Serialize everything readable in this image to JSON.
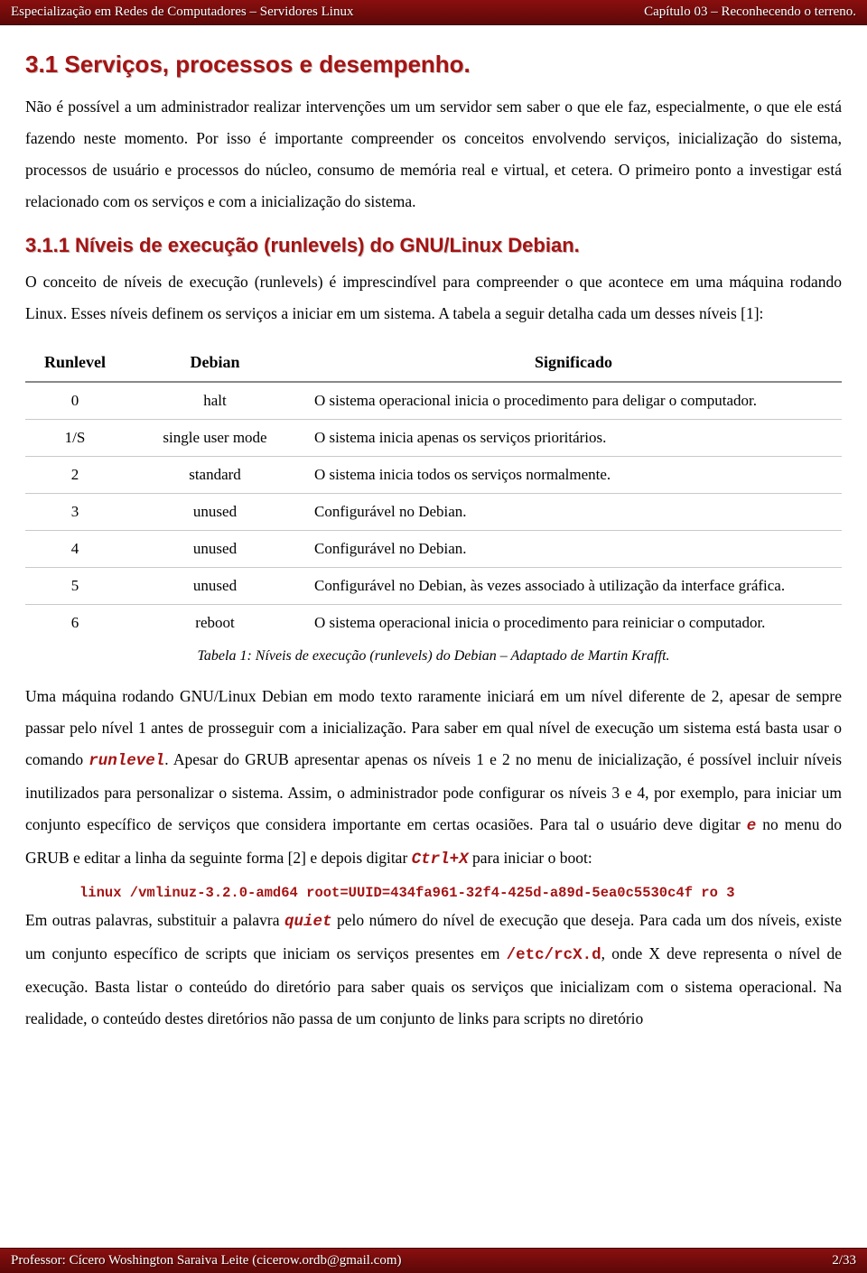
{
  "header": {
    "left": "Especialização em Redes de Computadores – Servidores Linux",
    "right": "Capítulo 03 – Reconhecendo o terreno."
  },
  "footer": {
    "left": "Professor: Cícero Woshington Saraiva Leite (cicerow.ordb@gmail.com)",
    "right": "2/33"
  },
  "section": {
    "title": "3.1 Serviços, processos e desempenho.",
    "para1": "Não é possível a um administrador realizar intervenções um um servidor sem saber o que ele faz, especialmente, o que ele está fazendo neste momento. Por isso é importante compreender os conceitos envolvendo serviços, inicialização do sistema, processos de usuário e processos do núcleo, consumo de memória real e virtual, et cetera. O primeiro ponto a investigar está relacionado com os serviços e com a inicialização do sistema."
  },
  "subsection": {
    "title": "3.1.1 Níveis de execução (runlevels) do GNU/Linux Debian.",
    "para1": "O conceito de níveis de execução (runlevels) é imprescindível para compreender o que acontece em uma máquina rodando Linux. Esses níveis definem os serviços a iniciar em um sistema. A tabela a seguir detalha cada um desses níveis [1]:"
  },
  "table": {
    "columns": [
      "Runlevel",
      "Debian",
      "Significado"
    ],
    "rows": [
      [
        "0",
        "halt",
        "O sistema operacional inicia o procedimento para deligar o computador."
      ],
      [
        "1/S",
        "single user mode",
        "O sistema inicia apenas os serviços prioritários."
      ],
      [
        "2",
        "standard",
        "O sistema inicia todos os serviços normalmente."
      ],
      [
        "3",
        "unused",
        "Configurável no Debian."
      ],
      [
        "4",
        "unused",
        "Configurável no Debian."
      ],
      [
        "5",
        "unused",
        "Configurável no Debian, às vezes associado à utilização da interface gráfica."
      ],
      [
        "6",
        "reboot",
        "O sistema operacional inicia o procedimento para reiniciar o computador."
      ]
    ],
    "caption": "Tabela 1: Níveis de execução (runlevels) do Debian – Adaptado de Martin Krafft."
  },
  "para_after_table": {
    "seg1": "Uma máquina rodando GNU/Linux Debian em modo texto raramente iniciará em um nível diferente de 2, apesar de sempre passar pelo nível 1 antes de prosseguir com a inicialização. Para saber em qual nível de execução um sistema está basta usar o comando ",
    "code1": "runlevel",
    "seg2": ". Apesar do GRUB apresentar apenas os níveis 1 e 2 no menu de inicialização, é possível incluir níveis inutilizados para personalizar o sistema. Assim, o administrador pode configurar os níveis 3 e 4, por exemplo, para iniciar um conjunto específico de serviços que considera importante em certas ocasiões. Para tal o usuário deve digitar ",
    "code2": "e",
    "seg3": " no menu do GRUB e editar a linha da seguinte forma [2] e depois digitar ",
    "code3": "Ctrl+X",
    "seg4": " para iniciar o boot:"
  },
  "code_line": "linux /vmlinuz-3.2.0-amd64 root=UUID=434fa961-32f4-425d-a89d-5ea0c5530c4f ro 3",
  "para_last": {
    "seg1": "Em outras palavras, substituir a palavra ",
    "code1": "quiet",
    "seg2": " pelo número do nível de execução que deseja. Para cada um dos níveis, existe um conjunto específico de scripts que iniciam os serviços presentes em ",
    "code2": "/etc/rcX.d",
    "seg3": ", onde X deve representa o nível de execução. Basta listar o conteúdo do diretório para saber quais os serviços que inicializam com o sistema operacional. Na realidade, o conteúdo destes diretórios não passa de um conjunto de links para scripts no diretório"
  }
}
